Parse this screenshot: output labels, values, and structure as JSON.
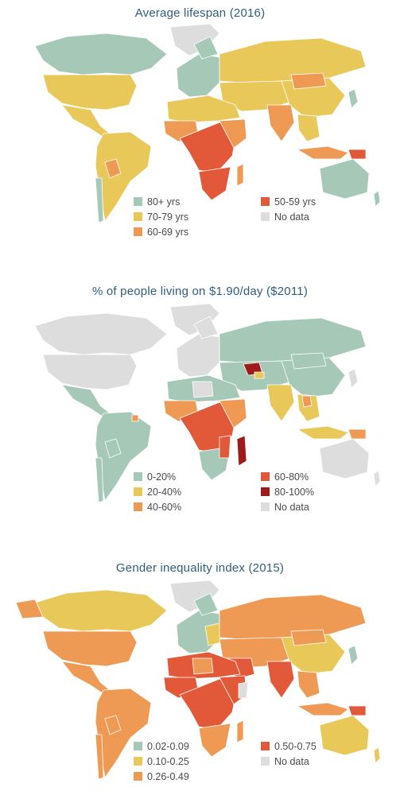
{
  "colors": {
    "teal": "#a6c9b7",
    "yellow": "#e9c85a",
    "orange": "#ee9a55",
    "red": "#e2593a",
    "darkred": "#9e1b1b",
    "nodata": "#dddddd"
  },
  "maps": [
    {
      "title": "Average lifespan (2016)",
      "legend": [
        {
          "label": "80+ yrs",
          "color": "#a6c9b7"
        },
        {
          "label": "70-79 yrs",
          "color": "#e9c85a"
        },
        {
          "label": "60-69 yrs",
          "color": "#ee9a55"
        },
        {
          "label": "50-59 yrs",
          "color": "#e2593a"
        },
        {
          "label": "No data",
          "color": "#dddddd"
        }
      ]
    },
    {
      "title": "% of people living on $1.90/day ($2011)",
      "legend": [
        {
          "label": "0-20%",
          "color": "#a6c9b7"
        },
        {
          "label": "20-40%",
          "color": "#e9c85a"
        },
        {
          "label": "40-60%",
          "color": "#ee9a55"
        },
        {
          "label": "60-80%",
          "color": "#e2593a"
        },
        {
          "label": "80-100%",
          "color": "#9e1b1b"
        },
        {
          "label": "No data",
          "color": "#dddddd"
        }
      ]
    },
    {
      "title": "Gender inequality index (2015)",
      "legend": [
        {
          "label": "0.02-0.09",
          "color": "#a6c9b7"
        },
        {
          "label": "0.10-0.25",
          "color": "#e9c85a"
        },
        {
          "label": "0.26-0.49",
          "color": "#ee9a55"
        },
        {
          "label": "0.50-0.75",
          "color": "#e2593a"
        },
        {
          "label": "No data",
          "color": "#dddddd"
        }
      ]
    }
  ]
}
